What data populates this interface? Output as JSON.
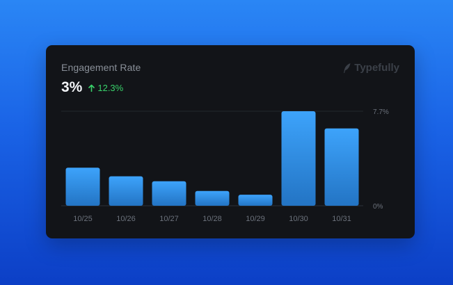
{
  "card": {
    "title": "Engagement Rate",
    "value": "3%",
    "delta": "12.3%",
    "delta_icon": "arrow-up-icon",
    "brand": "Typefully",
    "brand_icon": "quill-icon"
  },
  "colors": {
    "bar_top": "#3da3fb",
    "bar_bottom": "#2374c4",
    "delta": "#39d36b"
  },
  "chart_data": {
    "type": "bar",
    "title": "",
    "xlabel": "",
    "ylabel": "",
    "categories": [
      "10/25",
      "10/26",
      "10/27",
      "10/28",
      "10/29",
      "10/30",
      "10/31"
    ],
    "values": [
      3.1,
      2.4,
      2.0,
      1.2,
      0.9,
      7.7,
      6.3
    ],
    "ylim": [
      0,
      7.7
    ],
    "y_tick_labels": [
      "7.7%",
      "0%"
    ],
    "grid": false
  }
}
